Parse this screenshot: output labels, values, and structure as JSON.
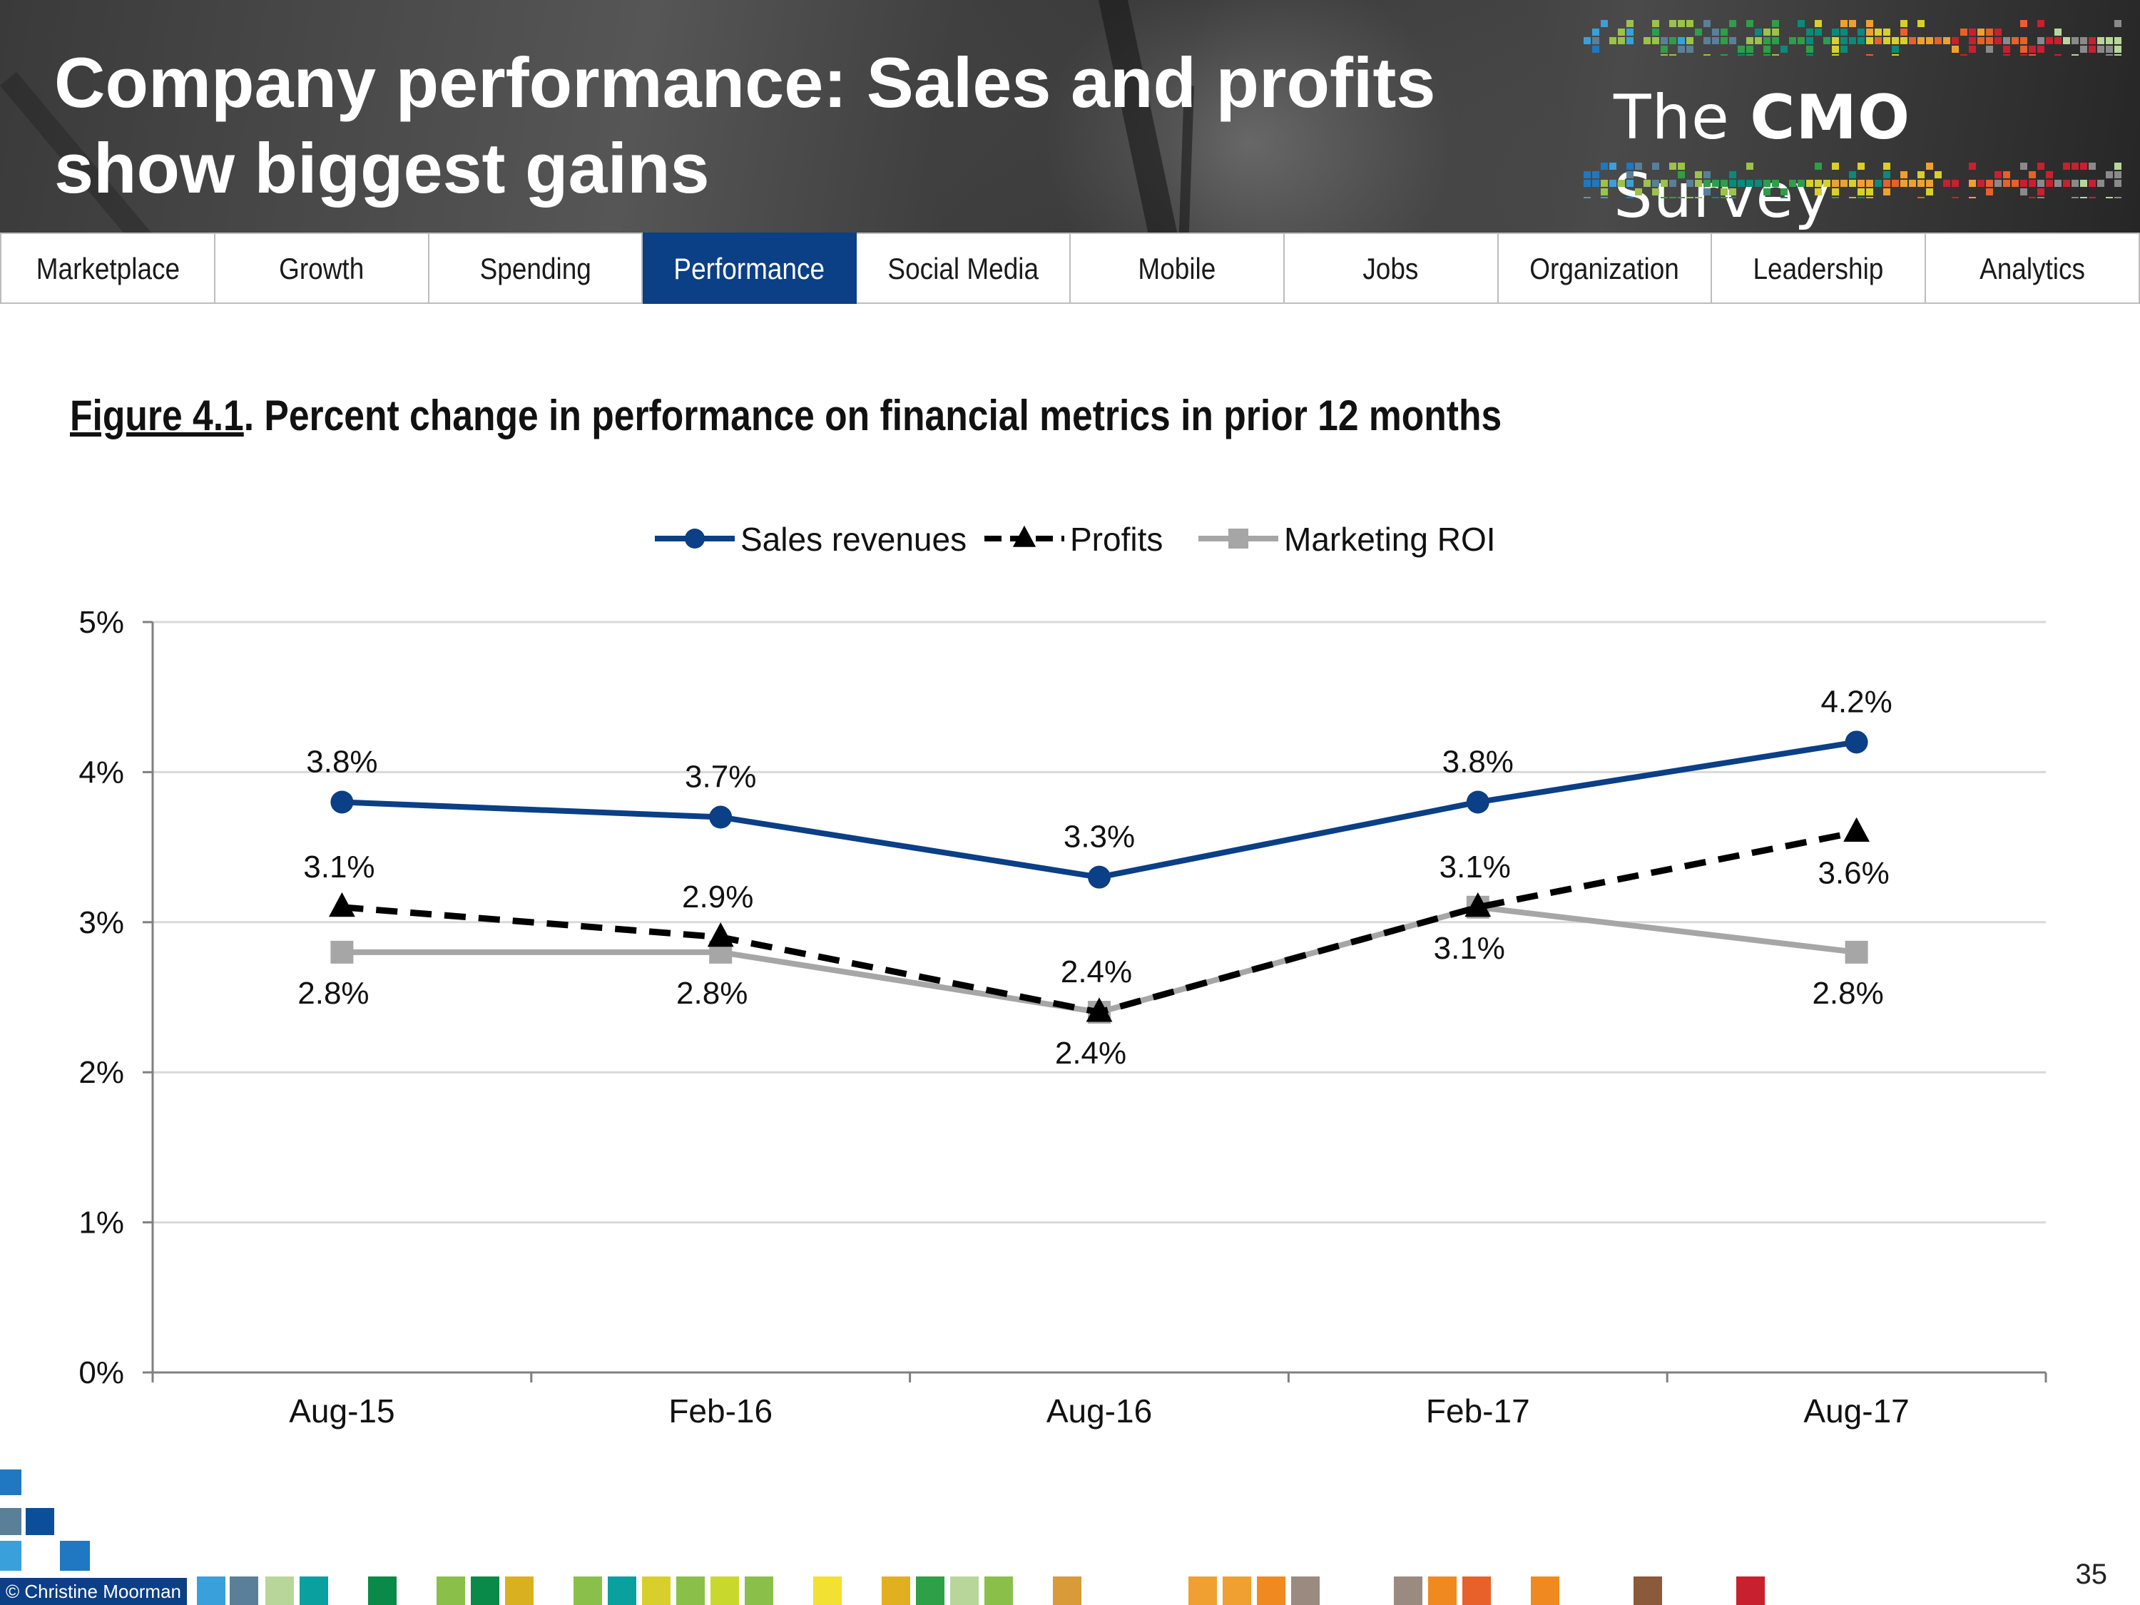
{
  "header": {
    "title": "Company performance: Sales and profits show biggest gains",
    "logo": {
      "prefix": "The ",
      "bold": "CMO",
      "suffix": " Survey"
    }
  },
  "nav": {
    "active": "Performance",
    "tabs": [
      "Marketplace",
      "Growth",
      "Spending",
      "Performance",
      "Social Media",
      "Mobile",
      "Jobs",
      "Organization",
      "Leadership",
      "Analytics"
    ]
  },
  "figure": {
    "label": "Figure 4.1",
    "caption": ".  Percent change in performance on financial metrics in prior 12 months"
  },
  "chart_data": {
    "type": "line",
    "title": "",
    "xlabel": "",
    "ylabel": "",
    "categories": [
      "Aug-15",
      "Feb-16",
      "Aug-16",
      "Feb-17",
      "Aug-17"
    ],
    "ylim": [
      0,
      5
    ],
    "yticks": [
      "0%",
      "1%",
      "2%",
      "3%",
      "4%",
      "5%"
    ],
    "grid": true,
    "legend_position": "top-center",
    "series": [
      {
        "name": "Sales revenues",
        "values": [
          3.8,
          3.7,
          3.3,
          3.8,
          4.2
        ],
        "labels": [
          "3.8%",
          "3.7%",
          "3.3%",
          "3.8%",
          "4.2%"
        ],
        "color": "#0b3f86",
        "marker": "circle",
        "style": "solid"
      },
      {
        "name": "Profits",
        "values": [
          3.1,
          2.9,
          2.4,
          3.1,
          3.6
        ],
        "labels": [
          "3.1%",
          "2.9%",
          "2.4%",
          "3.1%",
          "3.6%"
        ],
        "color": "#000000",
        "marker": "triangle",
        "style": "dashed"
      },
      {
        "name": "Marketing ROI",
        "values": [
          2.8,
          2.8,
          2.4,
          3.1,
          2.8
        ],
        "labels": [
          "2.8%",
          "2.8%",
          "2.4%",
          "3.1%",
          "2.8%"
        ],
        "color": "#a6a6a6",
        "marker": "square",
        "style": "solid"
      }
    ]
  },
  "footer": {
    "copyright": "© Christine Moorman",
    "page_number": "35"
  }
}
